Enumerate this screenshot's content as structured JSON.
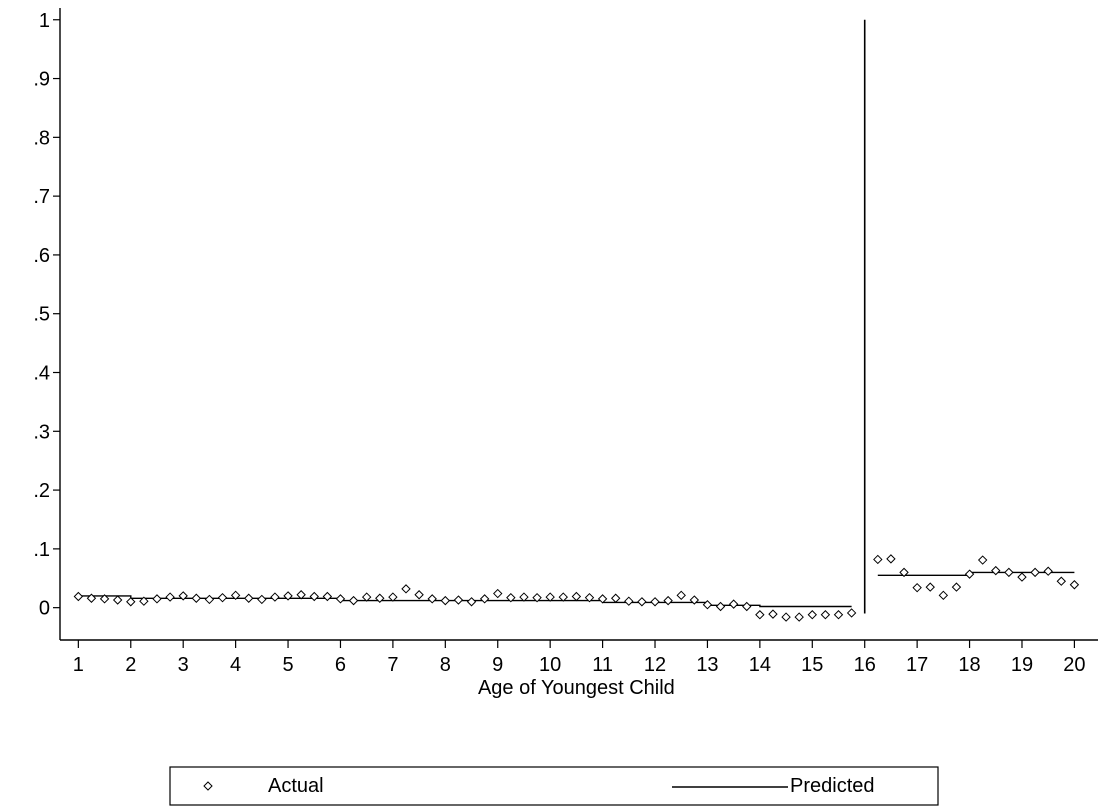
{
  "chart_data": {
    "type": "scatter",
    "title": "",
    "xlabel": "Age of Youngest Child",
    "ylabel": "",
    "xlim": [
      0.65,
      20.45
    ],
    "ylim": [
      -0.055,
      1.02
    ],
    "xticks": [
      1,
      2,
      3,
      4,
      5,
      6,
      7,
      8,
      9,
      10,
      11,
      12,
      13,
      14,
      15,
      16,
      17,
      18,
      19,
      20
    ],
    "yticks": [
      {
        "value": 0,
        "label": "0"
      },
      {
        "value": 0.1,
        "label": ".1"
      },
      {
        "value": 0.2,
        "label": ".2"
      },
      {
        "value": 0.3,
        "label": ".3"
      },
      {
        "value": 0.4,
        "label": ".4"
      },
      {
        "value": 0.5,
        "label": ".5"
      },
      {
        "value": 0.6,
        "label": ".6"
      },
      {
        "value": 0.7,
        "label": ".7"
      },
      {
        "value": 0.8,
        "label": ".8"
      },
      {
        "value": 0.9,
        "label": ".9"
      },
      {
        "value": 1,
        "label": "1"
      }
    ],
    "grid": false,
    "cutoff_line": {
      "x": 16,
      "y": [
        -0.01,
        1.0
      ]
    },
    "legend": {
      "placement": "bottom"
    },
    "series": [
      {
        "name": "Actual",
        "marker": "diamond-hollow",
        "points": [
          [
            1.0,
            0.019
          ],
          [
            1.25,
            0.016
          ],
          [
            1.5,
            0.015
          ],
          [
            1.75,
            0.013
          ],
          [
            2.0,
            0.01
          ],
          [
            2.25,
            0.011
          ],
          [
            2.5,
            0.015
          ],
          [
            2.75,
            0.018
          ],
          [
            3.0,
            0.02
          ],
          [
            3.25,
            0.016
          ],
          [
            3.5,
            0.014
          ],
          [
            3.75,
            0.017
          ],
          [
            4.0,
            0.021
          ],
          [
            4.25,
            0.016
          ],
          [
            4.5,
            0.014
          ],
          [
            4.75,
            0.018
          ],
          [
            5.0,
            0.02
          ],
          [
            5.25,
            0.022
          ],
          [
            5.5,
            0.019
          ],
          [
            5.75,
            0.019
          ],
          [
            6.0,
            0.015
          ],
          [
            6.25,
            0.012
          ],
          [
            6.5,
            0.018
          ],
          [
            6.75,
            0.016
          ],
          [
            7.0,
            0.018
          ],
          [
            7.25,
            0.032
          ],
          [
            7.5,
            0.022
          ],
          [
            7.75,
            0.015
          ],
          [
            8.0,
            0.012
          ],
          [
            8.25,
            0.013
          ],
          [
            8.5,
            0.01
          ],
          [
            8.75,
            0.015
          ],
          [
            9.0,
            0.024
          ],
          [
            9.25,
            0.017
          ],
          [
            9.5,
            0.018
          ],
          [
            9.75,
            0.017
          ],
          [
            10.0,
            0.018
          ],
          [
            10.25,
            0.018
          ],
          [
            10.5,
            0.019
          ],
          [
            10.75,
            0.017
          ],
          [
            11.0,
            0.015
          ],
          [
            11.25,
            0.016
          ],
          [
            11.5,
            0.011
          ],
          [
            11.75,
            0.01
          ],
          [
            12.0,
            0.01
          ],
          [
            12.25,
            0.012
          ],
          [
            12.5,
            0.021
          ],
          [
            12.75,
            0.013
          ],
          [
            13.0,
            0.005
          ],
          [
            13.25,
            0.002
          ],
          [
            13.5,
            0.006
          ],
          [
            13.75,
            0.002
          ],
          [
            14.0,
            -0.012
          ],
          [
            14.25,
            -0.011
          ],
          [
            14.5,
            -0.016
          ],
          [
            14.75,
            -0.016
          ],
          [
            15.0,
            -0.012
          ],
          [
            15.25,
            -0.012
          ],
          [
            15.5,
            -0.012
          ],
          [
            15.75,
            -0.009
          ],
          [
            16.25,
            0.082
          ],
          [
            16.5,
            0.083
          ],
          [
            16.75,
            0.06
          ],
          [
            17.0,
            0.034
          ],
          [
            17.25,
            0.035
          ],
          [
            17.5,
            0.021
          ],
          [
            17.75,
            0.035
          ],
          [
            18.0,
            0.057
          ],
          [
            18.25,
            0.081
          ],
          [
            18.5,
            0.063
          ],
          [
            18.75,
            0.06
          ],
          [
            19.0,
            0.052
          ],
          [
            19.25,
            0.06
          ],
          [
            19.5,
            0.062
          ],
          [
            19.75,
            0.045
          ],
          [
            20.0,
            0.039
          ]
        ]
      },
      {
        "name": "Predicted",
        "style": "line",
        "segments": [
          [
            [
              1.0,
              0.02
            ],
            [
              2.0,
              0.02
            ],
            [
              2.0,
              0.016
            ],
            [
              6.0,
              0.016
            ],
            [
              6.0,
              0.012
            ],
            [
              11.0,
              0.012
            ],
            [
              11.0,
              0.009
            ],
            [
              13.0,
              0.009
            ],
            [
              13.0,
              0.004
            ],
            [
              14.0,
              0.004
            ],
            [
              14.0,
              0.002
            ],
            [
              15.75,
              0.002
            ]
          ],
          [
            [
              16.25,
              0.055
            ],
            [
              18.0,
              0.055
            ],
            [
              18.0,
              0.06
            ],
            [
              20.0,
              0.06
            ]
          ]
        ]
      }
    ]
  }
}
